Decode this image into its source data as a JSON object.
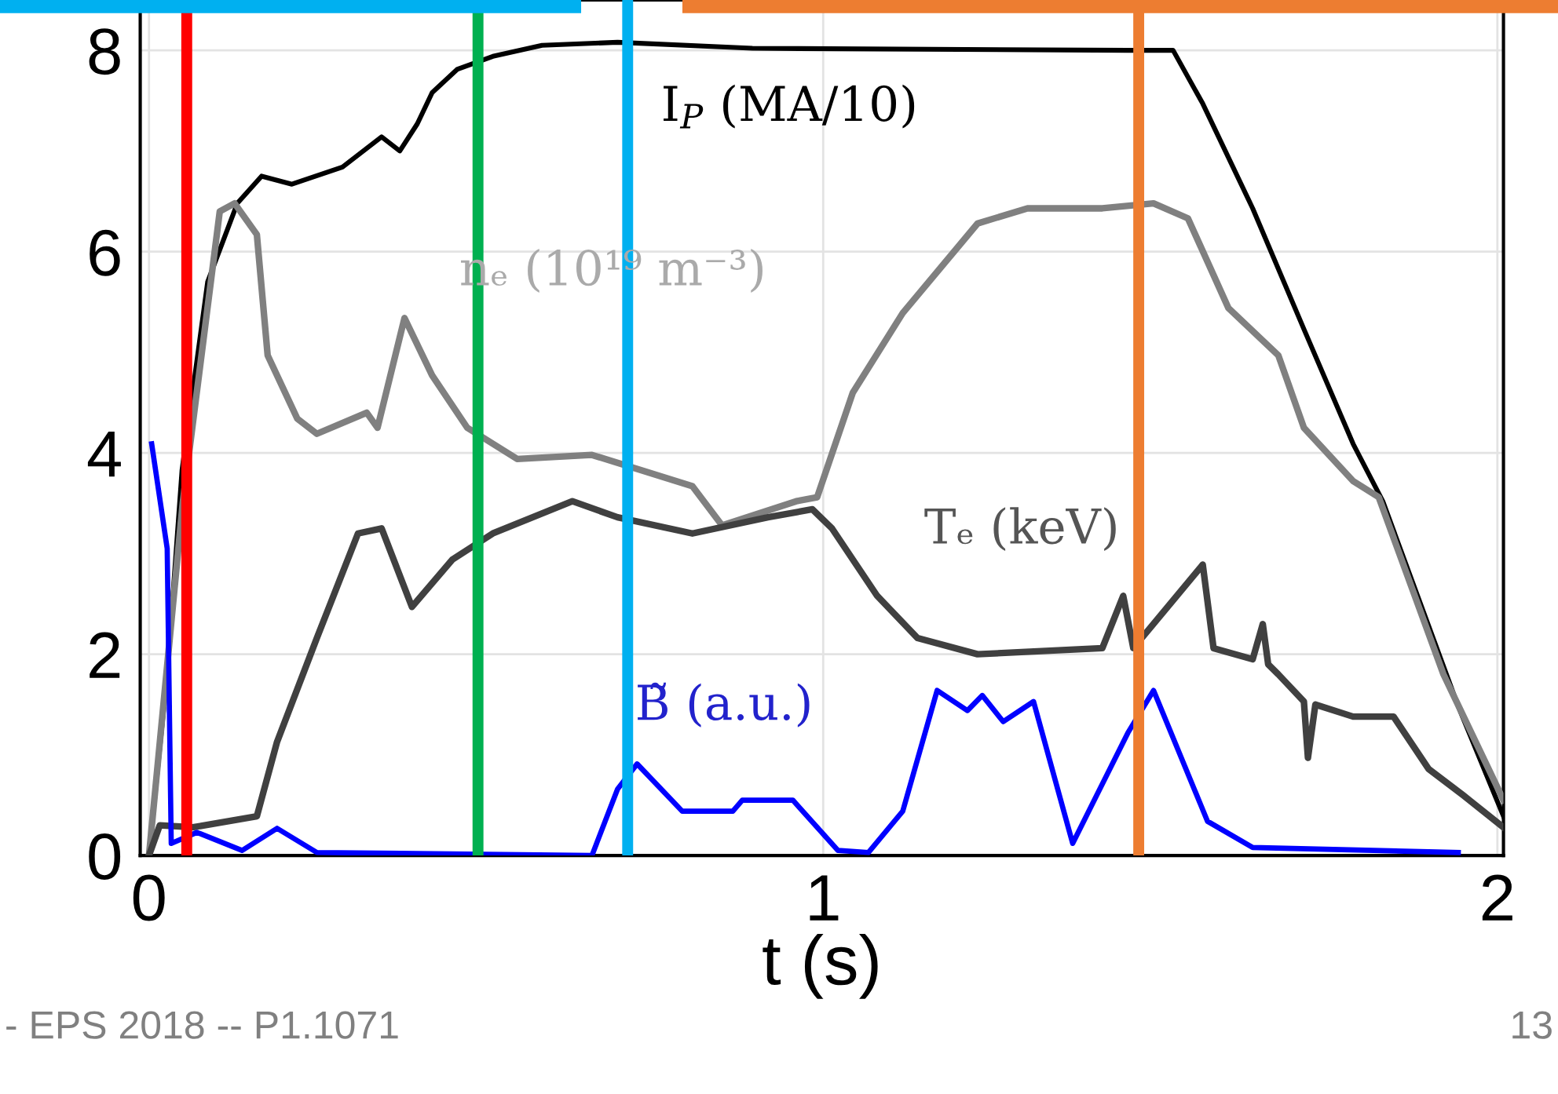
{
  "chart_data": {
    "type": "line",
    "xlabel": "t (s)",
    "xlim": [
      -0.013,
      2.009
    ],
    "ylim": [
      0,
      8.5
    ],
    "xticks": [
      0,
      1,
      2
    ],
    "yticks": [
      0,
      2,
      4,
      6,
      8
    ],
    "grid": true,
    "legend": false,
    "marker": "none",
    "line_style": "solid",
    "series": [
      {
        "name": "I$_{P}$ (MA/10)",
        "color": "#000000",
        "x": [
          0,
          0.027,
          0.049,
          0.087,
          0.131,
          0.167,
          0.212,
          0.287,
          0.345,
          0.372,
          0.398,
          0.42,
          0.457,
          0.51,
          0.583,
          0.695,
          0.895,
          1.452,
          1.519,
          1.563,
          1.637,
          1.713,
          1.786,
          1.83,
          1.942,
          2.009
        ],
        "values": [
          0,
          1.8,
          3.83,
          5.7,
          6.48,
          6.75,
          6.67,
          6.84,
          7.14,
          7.0,
          7.27,
          7.58,
          7.81,
          7.94,
          8.05,
          8.08,
          8.02,
          8.0,
          8.0,
          7.47,
          6.43,
          5.23,
          4.09,
          3.52,
          1.48,
          0.39
        ]
      },
      {
        "name": "nₑ (10¹⁹ m⁻³)",
        "color": "#808080",
        "x": [
          0,
          0.05,
          0.105,
          0.127,
          0.16,
          0.176,
          0.22,
          0.249,
          0.323,
          0.339,
          0.379,
          0.42,
          0.472,
          0.546,
          0.657,
          0.806,
          0.85,
          0.96,
          0.991,
          1.044,
          1.118,
          1.229,
          1.303,
          1.414,
          1.49,
          1.541,
          1.601,
          1.675,
          1.713,
          1.786,
          1.824,
          1.92,
          2.009
        ],
        "values": [
          0,
          3.5,
          6.4,
          6.48,
          6.17,
          4.97,
          4.34,
          4.19,
          4.4,
          4.25,
          5.34,
          4.77,
          4.25,
          3.94,
          3.98,
          3.67,
          3.28,
          3.52,
          3.56,
          4.6,
          5.39,
          6.28,
          6.43,
          6.43,
          6.48,
          6.33,
          5.44,
          4.97,
          4.25,
          3.72,
          3.56,
          1.8,
          0.55
        ]
      },
      {
        "name": "Tₑ (keV)",
        "color": "#404040",
        "x": [
          0,
          0.016,
          0.065,
          0.16,
          0.19,
          0.249,
          0.31,
          0.345,
          0.39,
          0.45,
          0.51,
          0.628,
          0.695,
          0.806,
          0.918,
          0.984,
          1.013,
          1.08,
          1.14,
          1.229,
          1.414,
          1.445,
          1.46,
          1.563,
          1.579,
          1.637,
          1.652,
          1.66,
          1.675,
          1.713,
          1.719,
          1.73,
          1.786,
          1.846,
          1.898,
          1.949,
          2.009
        ],
        "values": [
          0,
          0.3,
          0.28,
          0.39,
          1.13,
          2.16,
          3.2,
          3.25,
          2.47,
          2.94,
          3.2,
          3.52,
          3.36,
          3.2,
          3.36,
          3.44,
          3.25,
          2.58,
          2.16,
          2.0,
          2.06,
          2.58,
          2.06,
          2.89,
          2.06,
          1.95,
          2.3,
          1.9,
          1.8,
          1.53,
          0.97,
          1.5,
          1.38,
          1.38,
          0.86,
          0.6,
          0.28
        ]
      },
      {
        "name": "B̃ (a.u.)",
        "color": "#0000ff",
        "x": [
          0.004,
          0.027,
          0.033,
          0.071,
          0.138,
          0.19,
          0.249,
          0.657,
          0.695,
          0.724,
          0.791,
          0.866,
          0.88,
          0.955,
          1.022,
          1.067,
          1.118,
          1.169,
          1.214,
          1.236,
          1.267,
          1.312,
          1.37,
          1.452,
          1.49,
          1.57,
          1.637,
          1.942
        ],
        "values": [
          4.09,
          3.05,
          0.12,
          0.23,
          0.05,
          0.27,
          0.03,
          0.0,
          0.66,
          0.91,
          0.44,
          0.44,
          0.55,
          0.55,
          0.05,
          0.03,
          0.44,
          1.64,
          1.44,
          1.59,
          1.33,
          1.53,
          0.12,
          1.22,
          1.64,
          0.34,
          0.08,
          0.03
        ]
      }
    ],
    "ref_lines": [
      {
        "axis": "x",
        "value": 0.056,
        "label": null,
        "color": "#ff0000"
      },
      {
        "axis": "x",
        "value": 0.488,
        "label": null,
        "color": "#00b050"
      },
      {
        "axis": "x",
        "value": 0.71,
        "label": null,
        "color": "#00b0f0"
      },
      {
        "axis": "x",
        "value": 1.468,
        "label": null,
        "color": "#ed7d31"
      }
    ],
    "annotations": [
      "- EPS 2018 -- P1.1071",
      "13"
    ]
  }
}
